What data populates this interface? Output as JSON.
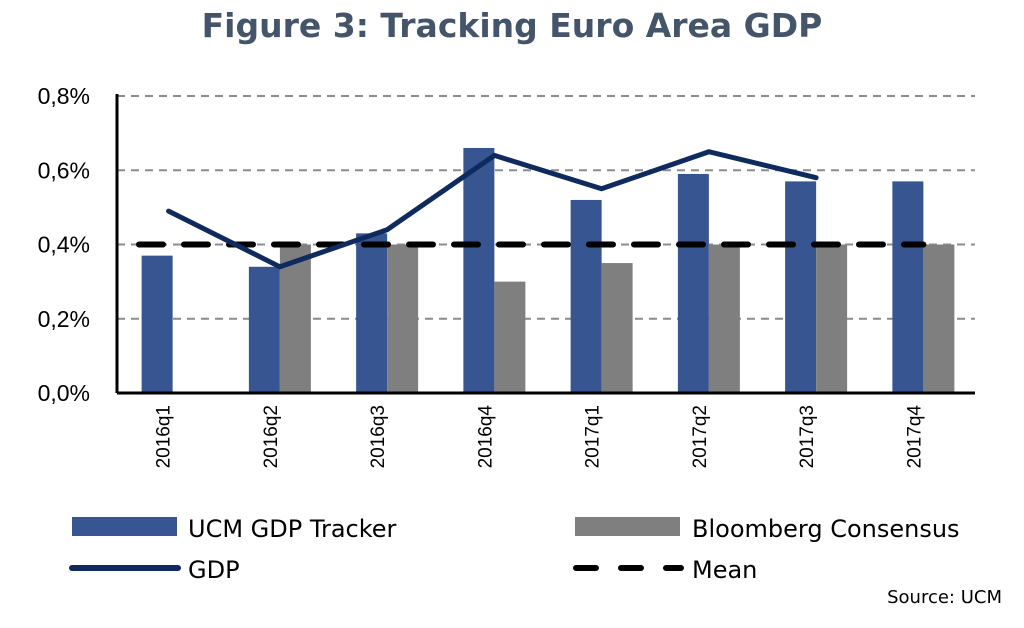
{
  "chart_data": {
    "type": "bar",
    "title": "Figure 3: Tracking Euro Area GDP",
    "xlabel": "",
    "ylabel": "",
    "categories": [
      "2016q1",
      "2016q2",
      "2016q3",
      "2016q4",
      "2017q1",
      "2017q2",
      "2017q3",
      "2017q4"
    ],
    "ylim": [
      0,
      0.8
    ],
    "yticks": [
      0,
      0.2,
      0.4,
      0.6,
      0.8
    ],
    "ytick_labels": [
      "0,0%",
      "0,2%",
      "0,4%",
      "0,6%",
      "0,8%"
    ],
    "grid": true,
    "legend_position": "bottom",
    "series": [
      {
        "name": "UCM GDP Tracker",
        "kind": "bar",
        "color": "#375591",
        "values": [
          0.37,
          0.34,
          0.43,
          0.66,
          0.52,
          0.59,
          0.57,
          0.57
        ]
      },
      {
        "name": "Bloomberg Consensus",
        "kind": "bar",
        "color": "#7f7f7f",
        "values": [
          null,
          0.4,
          0.4,
          0.3,
          0.35,
          0.4,
          0.4,
          0.4
        ]
      },
      {
        "name": "GDP",
        "kind": "line",
        "color": "#0f2a5e",
        "values": [
          0.49,
          0.34,
          0.44,
          0.64,
          0.55,
          0.65,
          0.58,
          null
        ]
      },
      {
        "name": "Mean",
        "kind": "dashed-line",
        "color": "#000000",
        "values": [
          0.4,
          0.4,
          0.4,
          0.4,
          0.4,
          0.4,
          0.4,
          0.4
        ]
      }
    ],
    "source": "Source: UCM"
  }
}
